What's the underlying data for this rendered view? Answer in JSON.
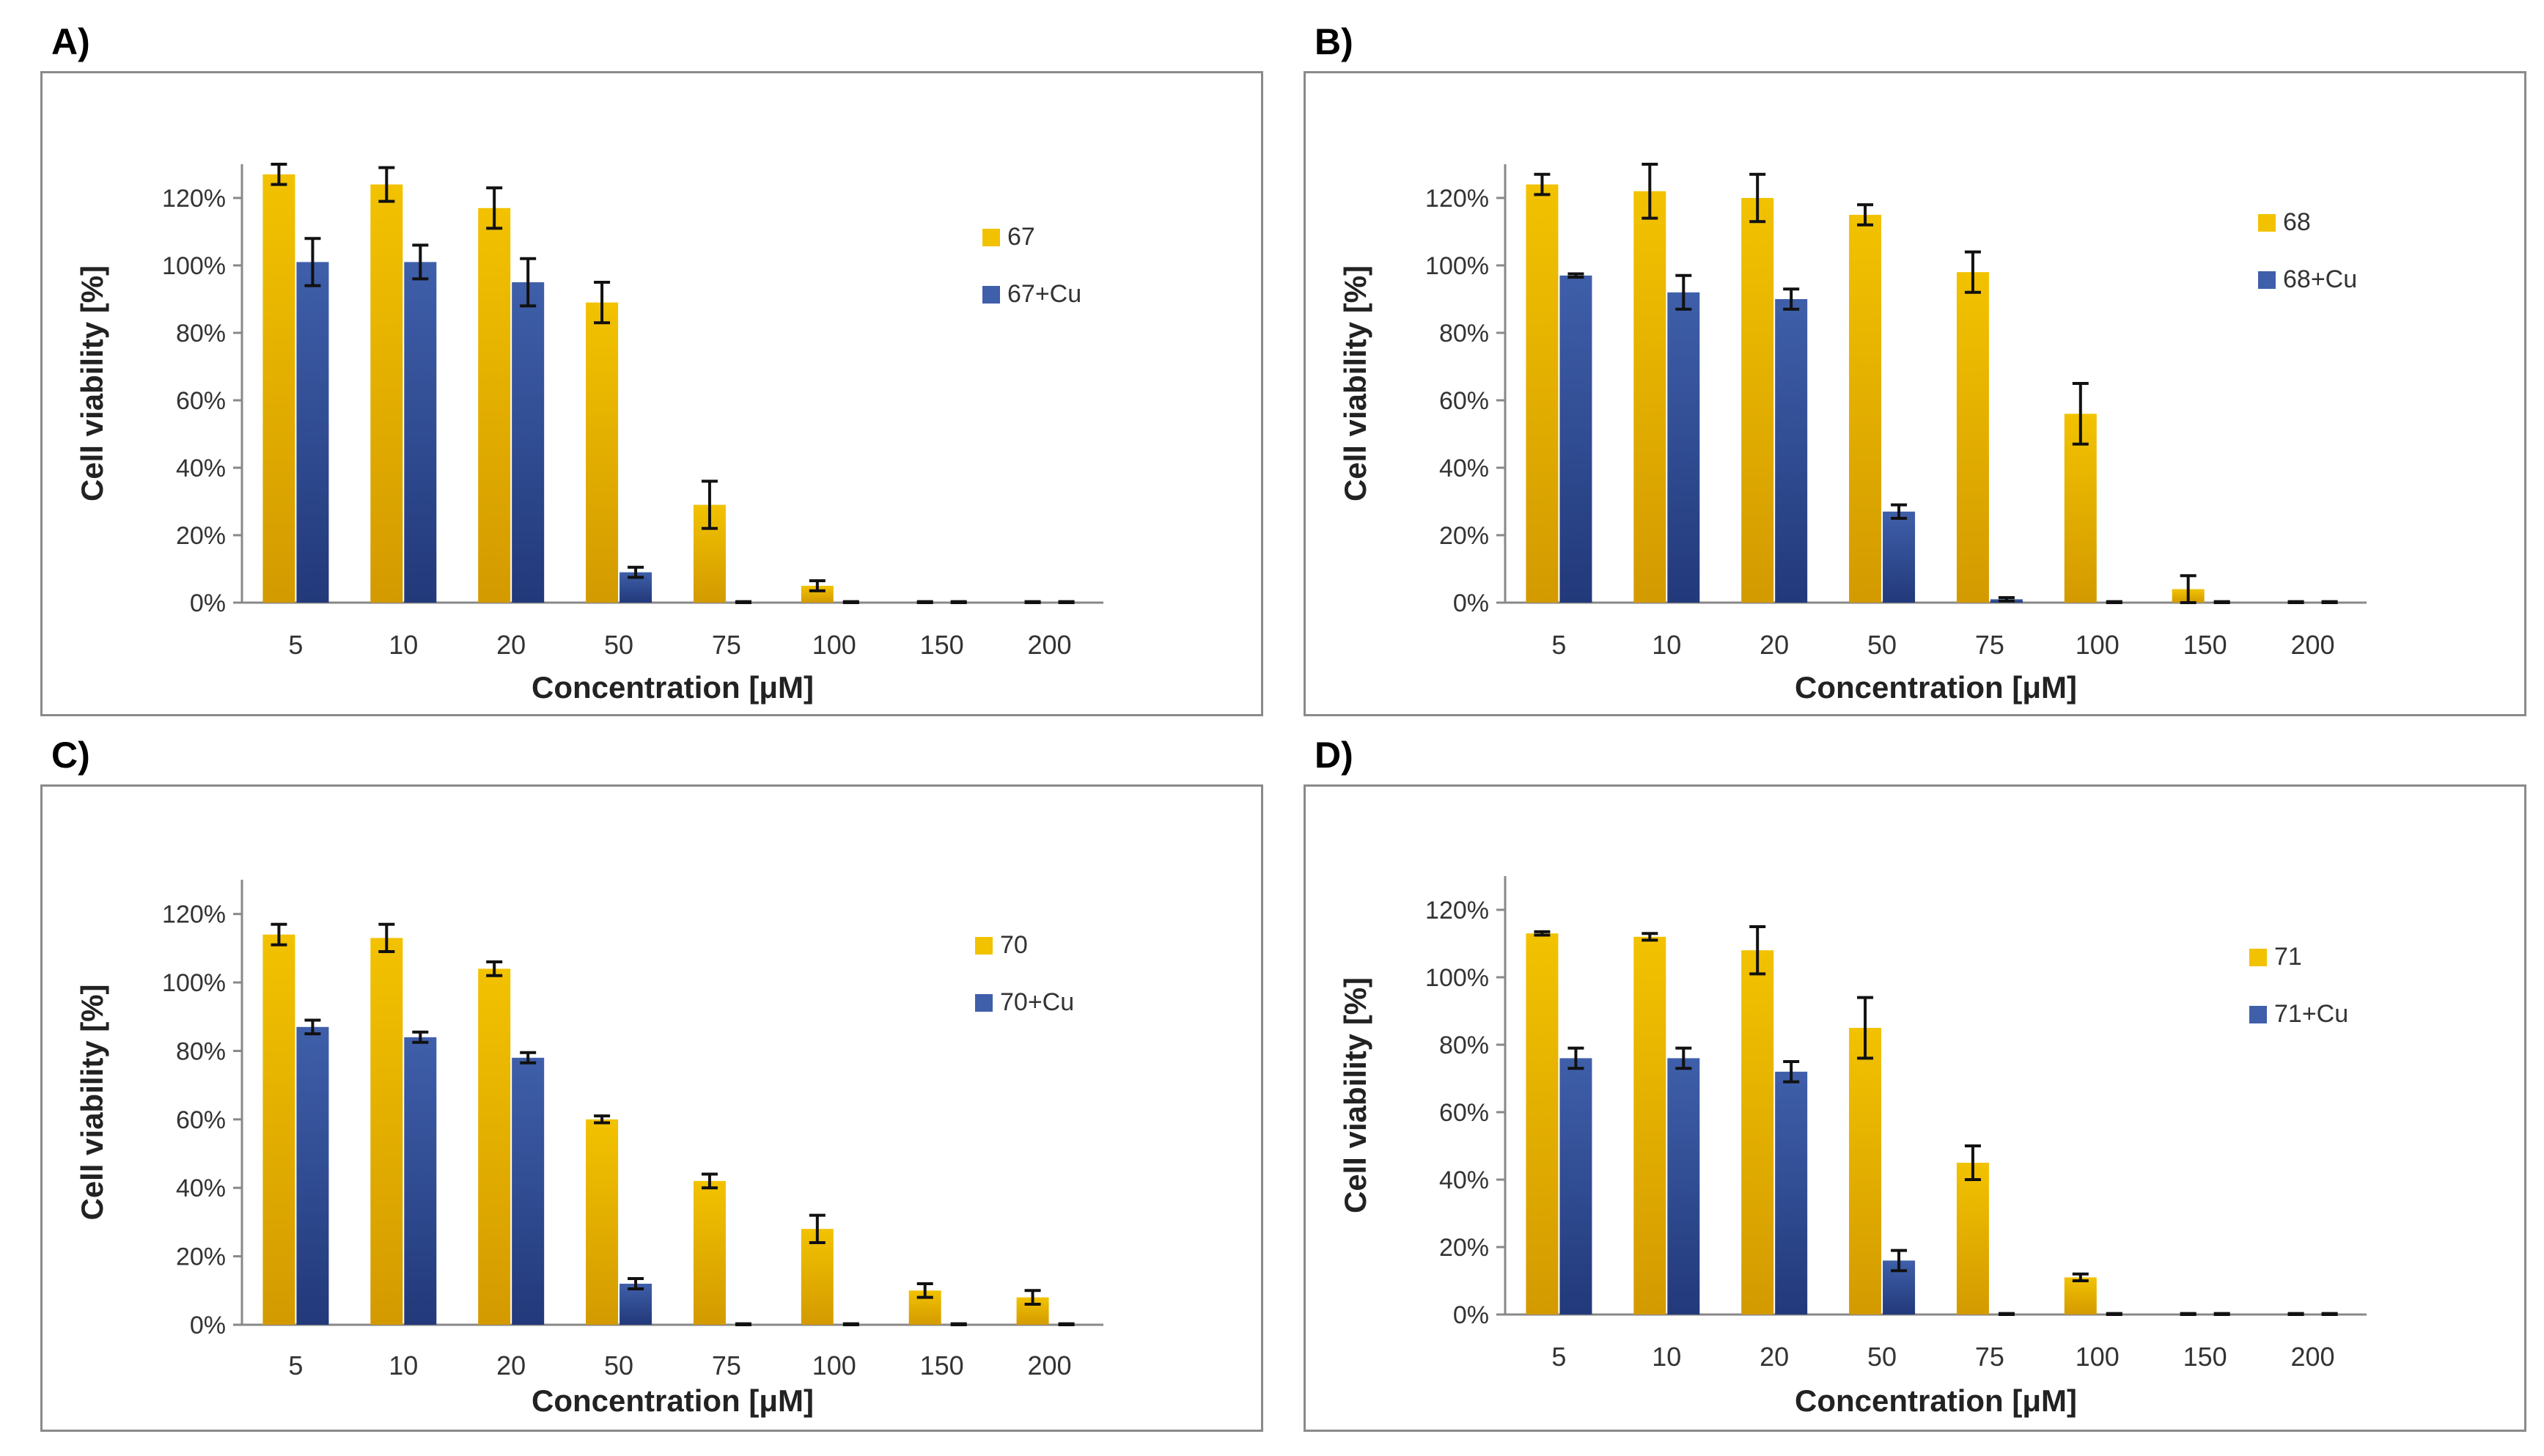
{
  "colors": {
    "series1": "#f2c200",
    "series1_dark": "#d39a00",
    "series2": "#3f5faa",
    "series2_dark": "#22397a",
    "axis": "#888888",
    "error": "#111111"
  },
  "chart_data": [
    {
      "type": "bar",
      "panel_label": "A)",
      "categories": [
        "5",
        "10",
        "20",
        "50",
        "75",
        "100",
        "150",
        "200"
      ],
      "xlabel": "Concentration [μM]",
      "ylabel": "Cell viability [%]",
      "ylim": [
        0,
        130
      ],
      "yticks": [
        0,
        20,
        40,
        60,
        80,
        100,
        120
      ],
      "ytick_labels": [
        "0%",
        "20%",
        "40%",
        "60%",
        "80%",
        "100%",
        "120%"
      ],
      "legend_position": "top-right",
      "series": [
        {
          "name": "67",
          "values": [
            127,
            124,
            117,
            89,
            29,
            5,
            0,
            0
          ],
          "errors": [
            3,
            5,
            6,
            6,
            7,
            1.5,
            0.3,
            0.3
          ]
        },
        {
          "name": "67+Cu",
          "values": [
            101,
            101,
            95,
            9,
            0,
            0,
            0,
            0
          ],
          "errors": [
            7,
            5,
            7,
            1.5,
            0.3,
            0.3,
            0.3,
            0.3
          ]
        }
      ]
    },
    {
      "type": "bar",
      "panel_label": "B)",
      "categories": [
        "5",
        "10",
        "20",
        "50",
        "75",
        "100",
        "150",
        "200"
      ],
      "xlabel": "Concentration [μM]",
      "ylabel": "Cell viability [%]",
      "ylim": [
        0,
        130
      ],
      "yticks": [
        0,
        20,
        40,
        60,
        80,
        100,
        120
      ],
      "ytick_labels": [
        "0%",
        "20%",
        "40%",
        "60%",
        "80%",
        "100%",
        "120%"
      ],
      "legend_position": "top-right",
      "series": [
        {
          "name": "68",
          "values": [
            124,
            122,
            120,
            115,
            98,
            56,
            4,
            0
          ],
          "errors": [
            3,
            8,
            7,
            3,
            6,
            9,
            4,
            0.3
          ]
        },
        {
          "name": "68+Cu",
          "values": [
            97,
            92,
            90,
            27,
            1,
            0,
            0,
            0
          ],
          "errors": [
            0.5,
            5,
            3,
            2,
            0.5,
            0.3,
            0.3,
            0.3
          ]
        }
      ]
    },
    {
      "type": "bar",
      "panel_label": "C)",
      "categories": [
        "5",
        "10",
        "20",
        "50",
        "75",
        "100",
        "150",
        "200"
      ],
      "xlabel": "Concentration [μM]",
      "ylabel": "Cell viability [%]",
      "ylim": [
        0,
        130
      ],
      "yticks": [
        0,
        20,
        40,
        60,
        80,
        100,
        120
      ],
      "ytick_labels": [
        "0%",
        "20%",
        "40%",
        "60%",
        "80%",
        "100%",
        "120%"
      ],
      "legend_position": "top-right",
      "series": [
        {
          "name": "70",
          "values": [
            114,
            113,
            104,
            60,
            42,
            28,
            10,
            8
          ],
          "errors": [
            3,
            4,
            2,
            1,
            2,
            4,
            2,
            2
          ]
        },
        {
          "name": "70+Cu",
          "values": [
            87,
            84,
            78,
            12,
            0,
            0,
            0,
            0
          ],
          "errors": [
            2,
            1.5,
            1.5,
            1.5,
            0.3,
            0.3,
            0.3,
            0.3
          ]
        }
      ]
    },
    {
      "type": "bar",
      "panel_label": "D)",
      "categories": [
        "5",
        "10",
        "20",
        "50",
        "75",
        "100",
        "150",
        "200"
      ],
      "xlabel": "Concentration [μM]",
      "ylabel": "Cell viability [%]",
      "ylim": [
        0,
        130
      ],
      "yticks": [
        0,
        20,
        40,
        60,
        80,
        100,
        120
      ],
      "ytick_labels": [
        "0%",
        "20%",
        "40%",
        "60%",
        "80%",
        "100%",
        "120%"
      ],
      "legend_position": "top-right",
      "series": [
        {
          "name": "71",
          "values": [
            113,
            112,
            108,
            85,
            45,
            11,
            0,
            0
          ],
          "errors": [
            0.5,
            1,
            7,
            9,
            5,
            1,
            0.3,
            0.3
          ]
        },
        {
          "name": "71+Cu",
          "values": [
            76,
            76,
            72,
            16,
            0,
            0,
            0,
            0
          ],
          "errors": [
            3,
            3,
            3,
            3,
            0.3,
            0.3,
            0.3,
            0.3
          ]
        }
      ]
    }
  ]
}
